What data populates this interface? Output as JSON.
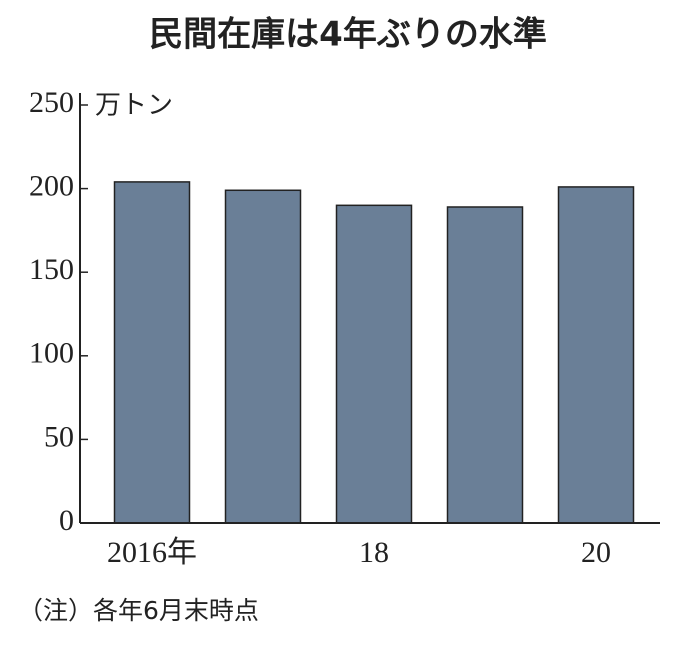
{
  "chart_data": {
    "type": "bar",
    "title": "民間在庫は4年ぶりの水準",
    "y_axis_label": "万トン",
    "categories": [
      "2016年",
      null,
      "18",
      null,
      "20"
    ],
    "values": [
      204,
      199,
      190,
      189,
      201
    ],
    "color": "#6a7f97",
    "ylim": [
      0,
      250
    ],
    "yticks": [
      0,
      50,
      100,
      150,
      200,
      250
    ],
    "grid": false,
    "note": "（注）各年6月末時点"
  }
}
